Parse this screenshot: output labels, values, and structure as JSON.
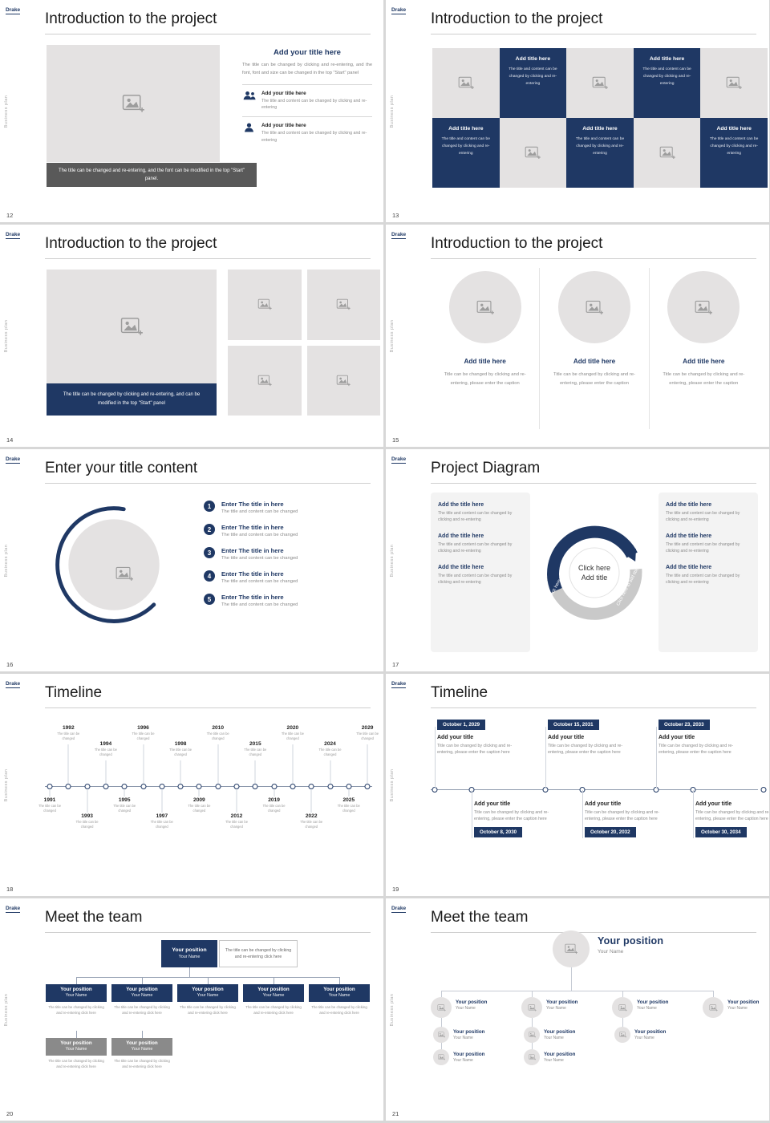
{
  "page": {
    "logo": "Drake",
    "vertical_text": "Business plan",
    "background": "#d7d7d7",
    "accent": "#1F3864"
  },
  "slides": [
    {
      "number": "12",
      "type": "intro_caption_dark",
      "title": "Introduction to the project",
      "image_caption": "The title can be changed and re-entering, and the font can be modified in the top \"Start\" panel.",
      "heading": "Add your title here",
      "paragraph": "The title can be changed by clicking and re-entering, and the font, font and size can be changed in the top \"Start\" panel",
      "items": [
        {
          "icon": "people-icon",
          "title": "Add your title here",
          "text": "The title and content can be changed by clicking and re-entering"
        },
        {
          "icon": "person-icon",
          "title": "Add your title here",
          "text": "The title and content can be changed by clicking and re-entering"
        }
      ]
    },
    {
      "number": "13",
      "type": "checkerboard",
      "title": "Introduction to the project",
      "cell_title": "Add title here",
      "cell_text": "The title and content can be changed by clicking and re-entering",
      "pattern": [
        "img",
        "text",
        "img",
        "text",
        "img",
        "text",
        "img",
        "text",
        "img",
        "text"
      ]
    },
    {
      "number": "14",
      "type": "image_grid",
      "title": "Introduction to the project",
      "image_caption": "The title can be changed by clicking and re-entering, and can be modified in the top \"Start\" panel"
    },
    {
      "number": "15",
      "type": "three_circles",
      "title": "Introduction to the project",
      "columns": [
        {
          "title": "Add title here",
          "caption": "Title can be changed by clicking and re-entering, please enter the caption"
        },
        {
          "title": "Add title here",
          "caption": "Title can be changed by clicking and re-entering, please enter the caption"
        },
        {
          "title": "Add title here",
          "caption": "Title can be changed by clicking and re-entering, please enter the caption"
        }
      ]
    },
    {
      "number": "16",
      "type": "numbered_list",
      "title": "Enter your title content",
      "items": [
        {
          "num": "1",
          "title": "Enter The title in here",
          "text": "The title and content can be changed"
        },
        {
          "num": "2",
          "title": "Enter The title in here",
          "text": "The title and content can be changed"
        },
        {
          "num": "3",
          "title": "Enter The title in here",
          "text": "The title and content can be changed"
        },
        {
          "num": "4",
          "title": "Enter The title in here",
          "text": "The title and content can be changed"
        },
        {
          "num": "5",
          "title": "Enter The title in here",
          "text": "The title and content can be changed"
        }
      ]
    },
    {
      "number": "17",
      "type": "cycle_diagram",
      "title": "Project Diagram",
      "center": {
        "line1": "Click here",
        "line2": "Add title"
      },
      "arrow_label": "Click here to add title",
      "left_items": [
        {
          "title": "Add the title here",
          "text": "The title and content can be changed by clicking and re-entering"
        },
        {
          "title": "Add the title here",
          "text": "The title and content can be changed by clicking and re-entering"
        },
        {
          "title": "Add the title here",
          "text": "The title and content can be changed by clicking and re-entering"
        }
      ],
      "right_items": [
        {
          "title": "Add the title here",
          "text": "The title and content can be changed by clicking and re-entering"
        },
        {
          "title": "Add the title here",
          "text": "The title and content can be changed by clicking and re-entering"
        },
        {
          "title": "Add the title here",
          "text": "The title and content can be changed by clicking and re-entering"
        }
      ]
    },
    {
      "number": "18",
      "type": "timeline_years",
      "title": "Timeline",
      "entry_caption": "The title can be changed",
      "top_years": [
        "1992",
        "1994",
        "1996",
        "1998",
        "2010",
        "2015",
        "2020",
        "2024",
        "2029"
      ],
      "bottom_years": [
        "1991",
        "1993",
        "1995",
        "1997",
        "2009",
        "2012",
        "2019",
        "2022",
        "2025"
      ]
    },
    {
      "number": "19",
      "type": "timeline_dates",
      "title": "Timeline",
      "entry_title": "Add your title",
      "entry_text": "Title can be changed by clicking and re-entering, please enter the caption here",
      "top_dates": [
        "October 1, 2029",
        "October 15, 2031",
        "October 23, 2033"
      ],
      "bottom_dates": [
        "October 8, 2030",
        "October 20, 2032",
        "October 30, 2034"
      ]
    },
    {
      "number": "20",
      "type": "org_chart",
      "title": "Meet the team",
      "root": {
        "position": "Your position",
        "name": "Your Name"
      },
      "root_note": "The title can be changed by clicking and re-entering click here",
      "level1": [
        {
          "position": "Your position",
          "name": "Your Name",
          "text": "The title can be changed by clicking and re-entering click here"
        },
        {
          "position": "Your position",
          "name": "Your Name",
          "text": "The title can be changed by clicking and re-entering click here"
        },
        {
          "position": "Your position",
          "name": "Your Name",
          "text": "The title can be changed by clicking and re-entering click here"
        },
        {
          "position": "Your position",
          "name": "Your Name",
          "text": "The title can be changed by clicking and re-entering click here"
        },
        {
          "position": "Your position",
          "name": "Your Name",
          "text": "The title can be changed by clicking and re-entering click here"
        }
      ],
      "level2": [
        {
          "position": "Your position",
          "name": "Your Name",
          "text": "The title can be changed by clicking and re-entering click here"
        },
        {
          "position": "Your position",
          "name": "Your Name",
          "text": "The title can be changed by clicking and re-entering click here"
        }
      ]
    },
    {
      "number": "21",
      "type": "team_tree",
      "title": "Meet the team",
      "root": {
        "position": "Your position",
        "name": "Your Name"
      },
      "columns": [
        {
          "position": "Your position",
          "name": "Your Name",
          "subs": [
            {
              "position": "Your position",
              "name": "Your Name"
            },
            {
              "position": "Your position",
              "name": "Your Name"
            }
          ]
        },
        {
          "position": "Your position",
          "name": "Your Name",
          "subs": [
            {
              "position": "Your position",
              "name": "Your Name"
            },
            {
              "position": "Your position",
              "name": "Your Name"
            }
          ]
        },
        {
          "position": "Your position",
          "name": "Your Name",
          "subs": [
            {
              "position": "Your position",
              "name": "Your Name"
            }
          ]
        },
        {
          "position": "Your position",
          "name": "Your Name",
          "subs": []
        }
      ]
    }
  ]
}
